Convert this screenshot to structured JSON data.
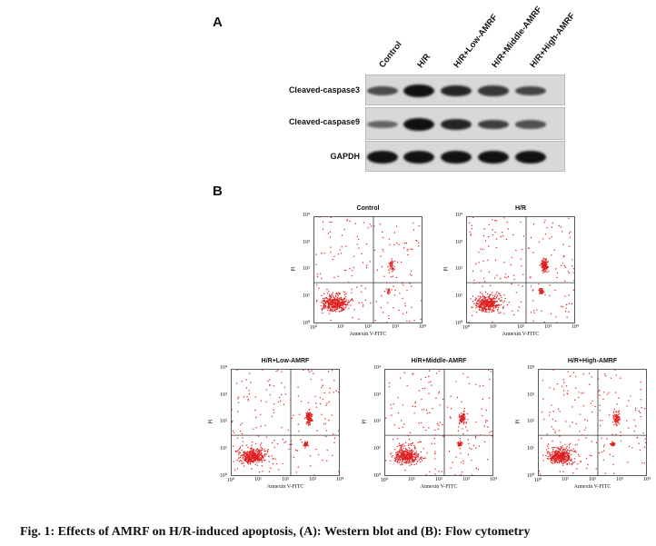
{
  "panel_a": {
    "letter": "A",
    "lanes": [
      "Control",
      "H/R",
      "H/R+Low-AMRF",
      "H/R+Middle-AMRF",
      "H/R+High-AMRF"
    ],
    "rows": [
      {
        "label": "Cleaved-caspase3",
        "intensity": [
          0.55,
          1.0,
          0.85,
          0.7,
          0.6
        ]
      },
      {
        "label": "Cleaved-caspase9",
        "intensity": [
          0.35,
          1.0,
          0.85,
          0.65,
          0.5
        ]
      },
      {
        "label": "GAPDH",
        "intensity": [
          1.0,
          1.0,
          1.0,
          1.0,
          1.0
        ]
      }
    ]
  },
  "panel_b": {
    "letter": "B",
    "plots": [
      {
        "title": "Control",
        "xlabel": "Annexin V-FITC",
        "ylabel": "PI",
        "apoptotic_level": 0.1
      },
      {
        "title": "H/R",
        "xlabel": "Annexin V-FITC",
        "ylabel": "PI",
        "apoptotic_level": 1.0
      },
      {
        "title": "H/R+Low-AMRF",
        "xlabel": "Annexin V-FITC",
        "ylabel": "PI",
        "apoptotic_level": 0.8
      },
      {
        "title": "H/R+Middle-AMRF",
        "xlabel": "Annexin V-FITC",
        "ylabel": "PI",
        "apoptotic_level": 0.6
      },
      {
        "title": "H/R+High-AMRF",
        "xlabel": "Annexin V-FITC",
        "ylabel": "PI",
        "apoptotic_level": 0.4
      }
    ],
    "tick_labels": [
      "10⁰",
      "10¹",
      "10²",
      "10³",
      "10⁴"
    ],
    "dot_color": "#e02020"
  },
  "caption": "Fig. 1: Effects of AMRF on H/R-induced apoptosis, (A): Western blot and (B): Flow cytometry"
}
